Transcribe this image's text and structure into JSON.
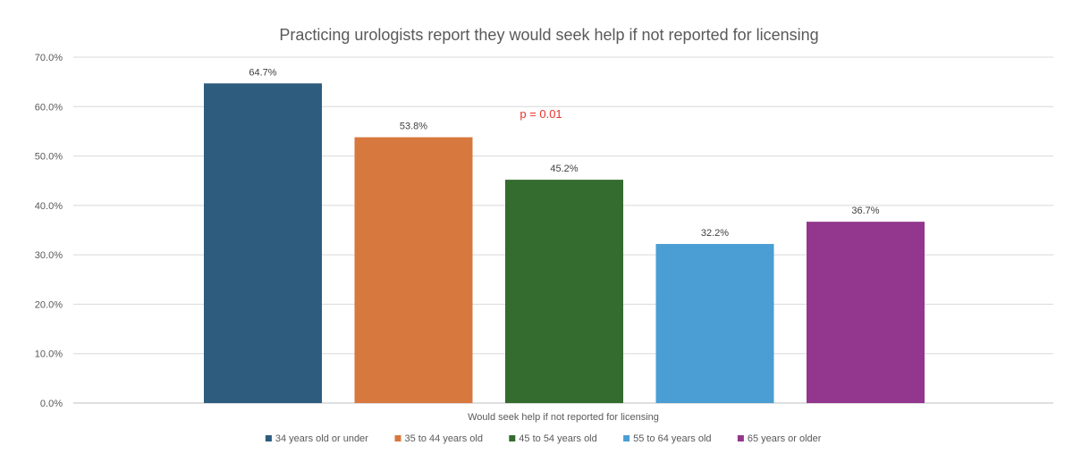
{
  "chart_data": {
    "type": "bar",
    "title": "Practicing urologists report they would seek help if not reported for licensing",
    "categories": [
      "Would seek help if not reported for licensing"
    ],
    "series": [
      {
        "name": "34 years old or under",
        "values": [
          64.7
        ],
        "label": "64.7%",
        "color": "#2e5c7e"
      },
      {
        "name": "35 to 44 years old",
        "values": [
          53.8
        ],
        "label": "53.8%",
        "color": "#d7783f"
      },
      {
        "name": "45 to 54 years old",
        "values": [
          45.2
        ],
        "label": "45.2%",
        "color": "#346b2e"
      },
      {
        "name": "55 to 64 years old",
        "values": [
          32.2
        ],
        "label": "32.2%",
        "color": "#4a9ed3"
      },
      {
        "name": "65 years or older",
        "values": [
          36.7
        ],
        "label": "36.7%",
        "color": "#93368d"
      }
    ],
    "y_ticks": [
      "0.0%",
      "10.0%",
      "20.0%",
      "30.0%",
      "40.0%",
      "50.0%",
      "60.0%",
      "70.0%"
    ],
    "ylim": [
      0,
      70
    ],
    "grid": true,
    "legend_position": "bottom",
    "annotation": {
      "text": "p = 0.01",
      "color": "#e8332c"
    }
  }
}
